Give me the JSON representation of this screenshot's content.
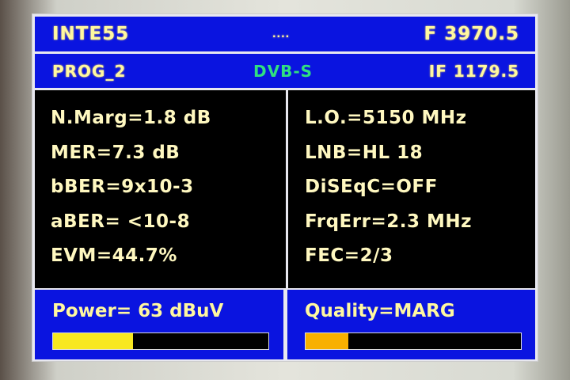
{
  "header": {
    "channel": "INTE55",
    "center": "....",
    "frequency": "F 3970.5"
  },
  "subheader": {
    "program": "PROG_2",
    "standard": "DVB-S",
    "if": "IF 1179.5"
  },
  "left_params": [
    "N.Marg=1.8 dB",
    "MER=7.3 dB",
    "bBER=9x10-3",
    "aBER= <10-8",
    "EVM=44.7%"
  ],
  "right_params": [
    "L.O.=5150 MHz",
    "LNB=HL 18",
    "DiSEqC=OFF",
    "FrqErr=2.3 MHz",
    "FEC=2/3"
  ],
  "power": {
    "label": "Power= 63 dBuV",
    "level_percent": 37,
    "color": "#f8e820"
  },
  "quality": {
    "label": "Quality=MARG",
    "level_percent": 20,
    "color": "#f8b000"
  },
  "colors": {
    "panel": "#0a14e0",
    "standard_text": "#30e080"
  }
}
